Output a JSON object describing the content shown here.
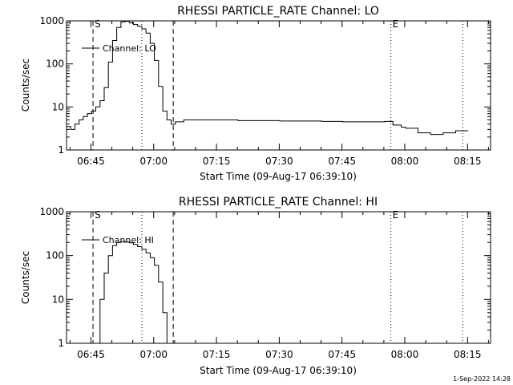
{
  "footer": {
    "timestamp": "1-Sep-2022 14:28"
  },
  "chart_data": [
    {
      "type": "line",
      "title": "RHESSI PARTICLE_RATE Channel: LO",
      "xlabel": "Start Time (09-Aug-17 06:39:10)",
      "ylabel": "Counts/sec",
      "yscale": "log",
      "ylim": [
        1,
        1000
      ],
      "xlim": [
        "06:39:10",
        "08:20:30"
      ],
      "xticks": [
        "06:45",
        "07:00",
        "07:15",
        "07:30",
        "07:45",
        "08:00",
        "08:15"
      ],
      "yticks": [
        "1",
        "10",
        "100",
        "1000"
      ],
      "legend": {
        "label": "Channel: LO",
        "placement": "top-left"
      },
      "markers": [
        {
          "label": "S",
          "time": "06:45:30",
          "style": "dashed"
        },
        {
          "label": "",
          "time": "06:57:10",
          "style": "dotted"
        },
        {
          "label": "",
          "time": "07:04:40",
          "style": "dashed"
        },
        {
          "label": "E",
          "time": "07:56:40",
          "style": "dotted"
        },
        {
          "label": "",
          "time": "08:13:50",
          "style": "dotted"
        }
      ],
      "series": [
        {
          "name": "Channel: LO",
          "x": [
            "06:39:10",
            "06:40:10",
            "06:41:10",
            "06:42:10",
            "06:43:10",
            "06:44:10",
            "06:45:10",
            "06:46:10",
            "06:47:10",
            "06:48:10",
            "06:49:10",
            "06:50:10",
            "06:51:10",
            "06:52:10",
            "06:53:10",
            "06:54:10",
            "06:55:10",
            "06:56:10",
            "06:57:10",
            "06:58:10",
            "06:59:10",
            "07:00:10",
            "07:01:10",
            "07:02:10",
            "07:03:10",
            "07:04:10",
            "07:05:10",
            "07:07:10",
            "07:10:10",
            "07:15:10",
            "07:20:10",
            "07:25:10",
            "07:30:10",
            "07:35:10",
            "07:40:10",
            "07:45:10",
            "07:50:10",
            "07:55:10",
            "07:57:10",
            "07:59:10",
            "08:00:10",
            "08:03:10",
            "08:06:10",
            "08:09:10",
            "08:12:10",
            "08:15:10"
          ],
          "y": [
            3.5,
            3,
            4,
            5,
            6,
            7,
            8,
            10,
            14,
            28,
            110,
            350,
            700,
            950,
            980,
            900,
            820,
            750,
            650,
            520,
            300,
            120,
            30,
            8,
            5,
            4,
            4.5,
            5,
            5,
            5,
            4.8,
            4.8,
            4.7,
            4.7,
            4.6,
            4.5,
            4.5,
            4.6,
            3.8,
            3.4,
            3.2,
            2.5,
            2.3,
            2.5,
            2.8,
            2.8
          ]
        }
      ]
    },
    {
      "type": "line",
      "title": "RHESSI PARTICLE_RATE Channel: HI",
      "xlabel": "Start Time (09-Aug-17 06:39:10)",
      "ylabel": "Counts/sec",
      "yscale": "log",
      "ylim": [
        1,
        1000
      ],
      "xlim": [
        "06:39:10",
        "08:20:30"
      ],
      "xticks": [
        "06:45",
        "07:00",
        "07:15",
        "07:30",
        "07:45",
        "08:00",
        "08:15"
      ],
      "yticks": [
        "1",
        "10",
        "100",
        "1000"
      ],
      "legend": {
        "label": "Channel: HI",
        "placement": "top-left"
      },
      "markers": [
        {
          "label": "S",
          "time": "06:45:30",
          "style": "dashed"
        },
        {
          "label": "",
          "time": "06:57:10",
          "style": "dotted"
        },
        {
          "label": "",
          "time": "07:04:40",
          "style": "dashed"
        },
        {
          "label": "E",
          "time": "07:56:40",
          "style": "dotted"
        },
        {
          "label": "",
          "time": "08:13:50",
          "style": "dotted"
        }
      ],
      "series": [
        {
          "name": "Channel: HI",
          "x": [
            "06:46:20",
            "06:47:10",
            "06:48:10",
            "06:49:10",
            "06:50:10",
            "06:51:10",
            "06:52:10",
            "06:53:10",
            "06:54:10",
            "06:55:10",
            "06:56:10",
            "06:57:10",
            "06:58:10",
            "06:59:10",
            "07:00:10",
            "07:01:10",
            "07:02:10",
            "07:03:10"
          ],
          "y": [
            1,
            10,
            40,
            100,
            170,
            200,
            210,
            205,
            195,
            180,
            160,
            140,
            115,
            90,
            60,
            25,
            5,
            1
          ]
        }
      ]
    }
  ]
}
